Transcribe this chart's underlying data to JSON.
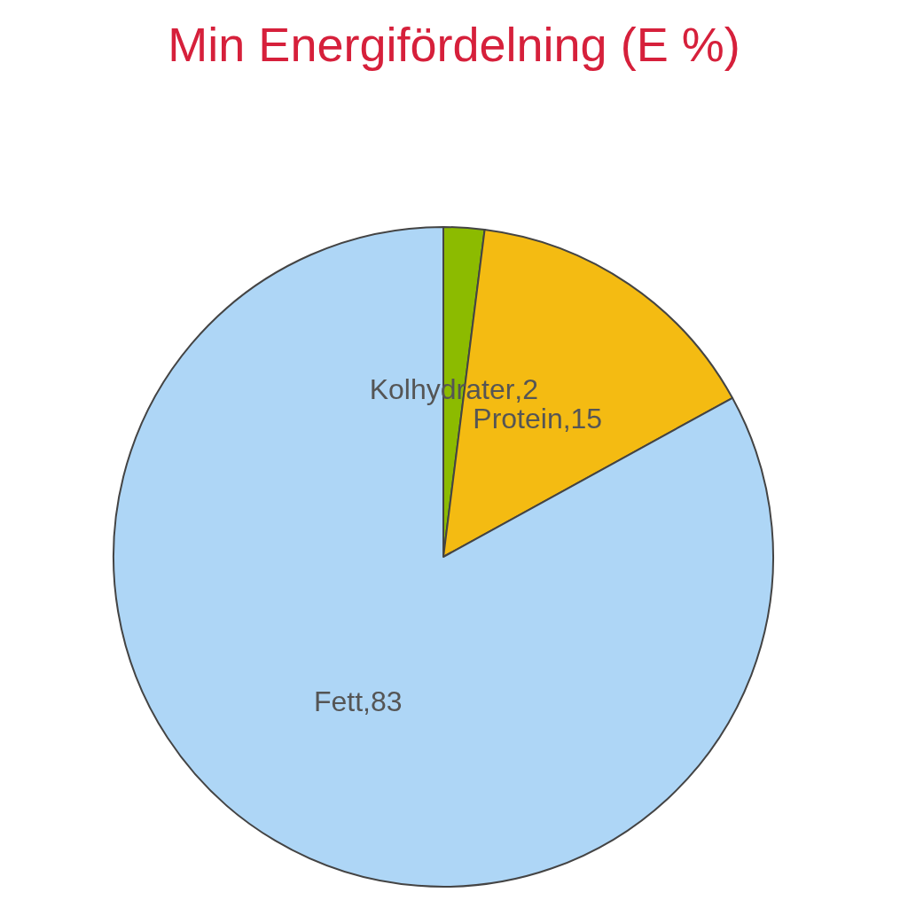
{
  "chart_data": {
    "type": "pie",
    "title": "Min Energifördelning (E %)",
    "categories": [
      "Kolhydrater",
      "Protein",
      "Fett"
    ],
    "values": [
      2,
      15,
      83
    ],
    "value_labels": [
      ",2",
      ",15",
      ",83"
    ],
    "colors": [
      "#8cbb00",
      "#f4bb12",
      "#aed6f6"
    ]
  }
}
